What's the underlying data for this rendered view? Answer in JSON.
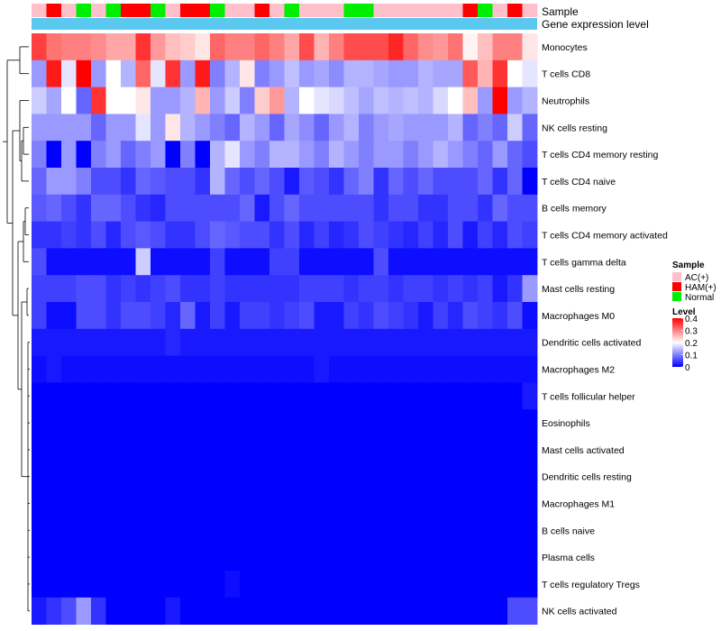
{
  "chart_data": {
    "type": "heatmap",
    "title": "",
    "annotation_tracks": [
      {
        "name": "Sample",
        "values": [
          "AC(+)",
          "HAM(+)",
          "AC(+)",
          "Normal",
          "AC(+)",
          "Normal",
          "HAM(+)",
          "HAM(+)",
          "Normal",
          "AC(+)",
          "HAM(+)",
          "HAM(+)",
          "Normal",
          "AC(+)",
          "AC(+)",
          "HAM(+)",
          "AC(+)",
          "Normal",
          "AC(+)",
          "AC(+)",
          "AC(+)",
          "Normal",
          "Normal",
          "AC(+)",
          "AC(+)",
          "AC(+)",
          "AC(+)",
          "AC(+)",
          "AC(+)",
          "HAM(+)",
          "Normal",
          "AC(+)",
          "HAM(+)",
          "AC(+)"
        ]
      },
      {
        "name": "Gene expression level"
      }
    ],
    "rows": [
      "Monocytes",
      "T cells CD8",
      "Neutrophils",
      "NK cells resting",
      "T cells CD4 memory resting",
      "T cells CD4 naive",
      "B cells memory",
      "T cells CD4 memory activated",
      "T cells gamma delta",
      "Mast cells resting",
      "Macrophages M0",
      "Dendritic cells activated",
      "Macrophages M2",
      "T cells follicular helper",
      "Eosinophils",
      "Mast cells activated",
      "Dendritic cells resting",
      "Macrophages M1",
      "B cells naive",
      "Plasma cells",
      "T cells regulatory  Tregs",
      "NK cells activated"
    ],
    "values": [
      [
        0.35,
        0.31,
        0.3,
        0.3,
        0.29,
        0.27,
        0.27,
        0.36,
        0.28,
        0.25,
        0.24,
        0.22,
        0.32,
        0.3,
        0.3,
        0.32,
        0.3,
        0.27,
        0.34,
        0.26,
        0.3,
        0.34,
        0.34,
        0.34,
        0.37,
        0.32,
        0.29,
        0.28,
        0.31,
        0.21,
        0.25,
        0.3,
        0.3,
        0.22
      ],
      [
        0.12,
        0.38,
        0.18,
        0.4,
        0.12,
        0.2,
        0.14,
        0.32,
        0.18,
        0.36,
        0.12,
        0.38,
        0.1,
        0.14,
        0.22,
        0.1,
        0.12,
        0.15,
        0.12,
        0.13,
        0.11,
        0.14,
        0.14,
        0.13,
        0.12,
        0.12,
        0.14,
        0.13,
        0.13,
        0.33,
        0.26,
        0.36,
        0.2,
        0.18
      ],
      [
        0.16,
        0.13,
        0.2,
        0.08,
        0.36,
        0.2,
        0.2,
        0.22,
        0.12,
        0.12,
        0.14,
        0.26,
        0.12,
        0.16,
        0.1,
        0.24,
        0.28,
        0.14,
        0.2,
        0.18,
        0.17,
        0.15,
        0.13,
        0.15,
        0.14,
        0.15,
        0.14,
        0.17,
        0.2,
        0.25,
        0.12,
        0.4,
        0.12,
        0.14
      ],
      [
        0.12,
        0.12,
        0.12,
        0.12,
        0.08,
        0.12,
        0.12,
        0.18,
        0.12,
        0.22,
        0.14,
        0.12,
        0.1,
        0.08,
        0.14,
        0.12,
        0.08,
        0.13,
        0.11,
        0.08,
        0.12,
        0.14,
        0.1,
        0.12,
        0.13,
        0.12,
        0.12,
        0.12,
        0.14,
        0.08,
        0.1,
        0.08,
        0.16,
        0.08
      ],
      [
        0.1,
        0.0,
        0.12,
        0.0,
        0.1,
        0.12,
        0.08,
        0.1,
        0.12,
        0.0,
        0.1,
        0.0,
        0.14,
        0.18,
        0.12,
        0.1,
        0.14,
        0.14,
        0.12,
        0.1,
        0.14,
        0.12,
        0.1,
        0.12,
        0.12,
        0.1,
        0.12,
        0.14,
        0.12,
        0.1,
        0.08,
        0.12,
        0.08,
        0.06
      ],
      [
        0.08,
        0.12,
        0.12,
        0.1,
        0.06,
        0.06,
        0.04,
        0.08,
        0.07,
        0.06,
        0.06,
        0.04,
        0.14,
        0.08,
        0.06,
        0.08,
        0.06,
        0.02,
        0.07,
        0.06,
        0.04,
        0.08,
        0.1,
        0.04,
        0.08,
        0.06,
        0.08,
        0.06,
        0.06,
        0.06,
        0.08,
        0.04,
        0.08,
        0.0
      ],
      [
        0.07,
        0.08,
        0.06,
        0.04,
        0.08,
        0.08,
        0.06,
        0.04,
        0.03,
        0.06,
        0.06,
        0.06,
        0.06,
        0.06,
        0.08,
        0.02,
        0.06,
        0.08,
        0.06,
        0.06,
        0.06,
        0.06,
        0.06,
        0.04,
        0.06,
        0.06,
        0.04,
        0.04,
        0.06,
        0.06,
        0.04,
        0.08,
        0.06,
        0.06
      ],
      [
        0.04,
        0.04,
        0.05,
        0.04,
        0.06,
        0.03,
        0.06,
        0.07,
        0.06,
        0.04,
        0.04,
        0.06,
        0.08,
        0.07,
        0.06,
        0.06,
        0.04,
        0.06,
        0.03,
        0.05,
        0.03,
        0.04,
        0.06,
        0.05,
        0.04,
        0.03,
        0.05,
        0.03,
        0.06,
        0.02,
        0.05,
        0.03,
        0.06,
        0.05
      ],
      [
        0.06,
        0.01,
        0.01,
        0.01,
        0.01,
        0.01,
        0.01,
        0.16,
        0.01,
        0.01,
        0.01,
        0.01,
        0.05,
        0.01,
        0.01,
        0.01,
        0.05,
        0.05,
        0.01,
        0.01,
        0.01,
        0.01,
        0.01,
        0.06,
        0.01,
        0.01,
        0.01,
        0.01,
        0.01,
        0.01,
        0.01,
        0.01,
        0.01,
        0.01
      ],
      [
        0.05,
        0.05,
        0.05,
        0.06,
        0.06,
        0.04,
        0.05,
        0.04,
        0.05,
        0.06,
        0.04,
        0.04,
        0.05,
        0.04,
        0.04,
        0.04,
        0.04,
        0.04,
        0.05,
        0.05,
        0.05,
        0.04,
        0.05,
        0.05,
        0.04,
        0.05,
        0.05,
        0.04,
        0.05,
        0.04,
        0.05,
        0.02,
        0.04,
        0.12
      ],
      [
        0.05,
        0.01,
        0.01,
        0.06,
        0.06,
        0.04,
        0.06,
        0.06,
        0.05,
        0.03,
        0.08,
        0.02,
        0.05,
        0.02,
        0.05,
        0.05,
        0.04,
        0.05,
        0.06,
        0.02,
        0.02,
        0.05,
        0.04,
        0.06,
        0.05,
        0.04,
        0.02,
        0.05,
        0.03,
        0.06,
        0.05,
        0.04,
        0.06,
        0.01
      ],
      [
        0.02,
        0.02,
        0.02,
        0.02,
        0.02,
        0.02,
        0.02,
        0.02,
        0.02,
        0.03,
        0.02,
        0.02,
        0.02,
        0.02,
        0.02,
        0.02,
        0.02,
        0.02,
        0.02,
        0.02,
        0.02,
        0.02,
        0.02,
        0.02,
        0.02,
        0.02,
        0.02,
        0.02,
        0.02,
        0.02,
        0.02,
        0.02,
        0.02,
        0.02
      ],
      [
        0.01,
        0.02,
        0.01,
        0.01,
        0.01,
        0.01,
        0.01,
        0.01,
        0.01,
        0.01,
        0.01,
        0.01,
        0.01,
        0.01,
        0.01,
        0.01,
        0.01,
        0.01,
        0.01,
        0.02,
        0.01,
        0.01,
        0.01,
        0.01,
        0.01,
        0.01,
        0.01,
        0.01,
        0.01,
        0.01,
        0.01,
        0.01,
        0.01,
        0.01
      ],
      [
        0.0,
        0.0,
        0.0,
        0.0,
        0.0,
        0.0,
        0.0,
        0.0,
        0.0,
        0.0,
        0.0,
        0.0,
        0.0,
        0.0,
        0.0,
        0.0,
        0.0,
        0.0,
        0.0,
        0.0,
        0.0,
        0.0,
        0.0,
        0.0,
        0.0,
        0.0,
        0.0,
        0.0,
        0.0,
        0.0,
        0.0,
        0.0,
        0.0,
        0.02
      ],
      [
        0.0,
        0.0,
        0.0,
        0.0,
        0.0,
        0.0,
        0.0,
        0.0,
        0.0,
        0.0,
        0.0,
        0.0,
        0.0,
        0.0,
        0.0,
        0.0,
        0.0,
        0.0,
        0.0,
        0.0,
        0.0,
        0.0,
        0.0,
        0.0,
        0.0,
        0.0,
        0.0,
        0.0,
        0.0,
        0.0,
        0.0,
        0.0,
        0.0,
        0.0
      ],
      [
        0.0,
        0.0,
        0.0,
        0.0,
        0.0,
        0.0,
        0.0,
        0.0,
        0.0,
        0.0,
        0.0,
        0.0,
        0.0,
        0.0,
        0.0,
        0.0,
        0.0,
        0.0,
        0.0,
        0.0,
        0.0,
        0.0,
        0.0,
        0.0,
        0.0,
        0.0,
        0.0,
        0.0,
        0.0,
        0.0,
        0.0,
        0.0,
        0.0,
        0.0
      ],
      [
        0.0,
        0.0,
        0.0,
        0.0,
        0.0,
        0.0,
        0.0,
        0.0,
        0.0,
        0.0,
        0.0,
        0.0,
        0.0,
        0.0,
        0.0,
        0.0,
        0.0,
        0.0,
        0.0,
        0.0,
        0.0,
        0.0,
        0.0,
        0.0,
        0.0,
        0.0,
        0.0,
        0.0,
        0.0,
        0.0,
        0.0,
        0.0,
        0.0,
        0.0
      ],
      [
        0.0,
        0.0,
        0.0,
        0.0,
        0.0,
        0.0,
        0.0,
        0.0,
        0.0,
        0.0,
        0.0,
        0.0,
        0.0,
        0.0,
        0.0,
        0.0,
        0.0,
        0.0,
        0.0,
        0.0,
        0.0,
        0.0,
        0.0,
        0.0,
        0.0,
        0.0,
        0.0,
        0.0,
        0.0,
        0.0,
        0.0,
        0.0,
        0.0,
        0.0
      ],
      [
        0.0,
        0.0,
        0.0,
        0.0,
        0.0,
        0.0,
        0.0,
        0.0,
        0.0,
        0.0,
        0.0,
        0.0,
        0.0,
        0.0,
        0.0,
        0.0,
        0.0,
        0.0,
        0.0,
        0.0,
        0.0,
        0.0,
        0.0,
        0.0,
        0.0,
        0.0,
        0.0,
        0.0,
        0.0,
        0.0,
        0.0,
        0.0,
        0.0,
        0.0
      ],
      [
        0.0,
        0.0,
        0.0,
        0.0,
        0.0,
        0.0,
        0.0,
        0.0,
        0.0,
        0.0,
        0.0,
        0.0,
        0.0,
        0.0,
        0.0,
        0.0,
        0.0,
        0.0,
        0.0,
        0.0,
        0.0,
        0.0,
        0.0,
        0.0,
        0.0,
        0.0,
        0.0,
        0.0,
        0.0,
        0.0,
        0.0,
        0.0,
        0.0,
        0.0
      ],
      [
        0.0,
        0.0,
        0.0,
        0.0,
        0.0,
        0.0,
        0.0,
        0.0,
        0.0,
        0.0,
        0.0,
        0.0,
        0.0,
        0.01,
        0.0,
        0.0,
        0.0,
        0.0,
        0.0,
        0.0,
        0.0,
        0.0,
        0.0,
        0.0,
        0.0,
        0.0,
        0.0,
        0.0,
        0.0,
        0.0,
        0.0,
        0.0,
        0.0,
        0.0
      ],
      [
        0.02,
        0.04,
        0.06,
        0.12,
        0.04,
        0.0,
        0.0,
        0.0,
        0.0,
        0.02,
        0.0,
        0.0,
        0.0,
        0.0,
        0.0,
        0.0,
        0.0,
        0.0,
        0.0,
        0.0,
        0.0,
        0.0,
        0.0,
        0.0,
        0.0,
        0.0,
        0.0,
        0.0,
        0.0,
        0.0,
        0.0,
        0.0,
        0.06,
        0.06
      ]
    ],
    "color_scale": {
      "min": 0,
      "max": 0.4,
      "low_color": "#0000ff",
      "mid_color": "#ffffff",
      "high_color": "#ff0000",
      "mid_value": 0.2
    },
    "legend": {
      "sample_title": "Sample",
      "sample_entries": [
        {
          "label": "AC(+)",
          "color": "#ffc0cb"
        },
        {
          "label": "HAM(+)",
          "color": "#ff0000"
        },
        {
          "label": "Normal",
          "color": "#00ee00"
        }
      ],
      "level_title": "Level",
      "level_ticks": [
        "0.4",
        "0.3",
        "0.2",
        "0.1",
        "0"
      ],
      "level_tick_values": [
        0.4,
        0.3,
        0.2,
        0.1,
        0
      ],
      "placement": "right"
    },
    "gene_expression_color": "#5bc8f0",
    "dendrogram": "left"
  }
}
